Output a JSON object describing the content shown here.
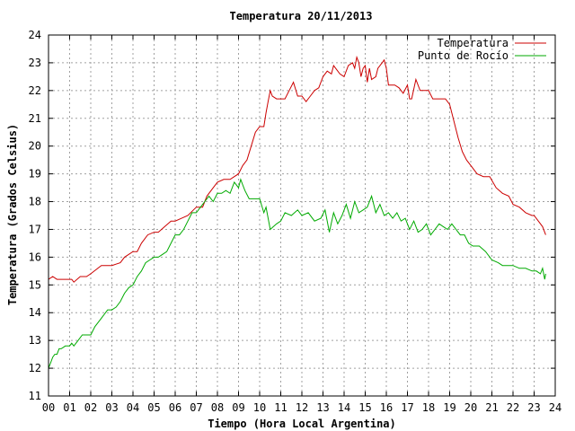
{
  "chart_data": {
    "type": "line",
    "title": "Temperatura 20/11/2013",
    "xlabel": "Tiempo (Hora Local Argentina)",
    "ylabel": "Temperatura (Grados Celsius)",
    "xlim": [
      0,
      24
    ],
    "ylim": [
      11,
      24
    ],
    "x_ticks": [
      "00",
      "01",
      "02",
      "03",
      "04",
      "05",
      "06",
      "07",
      "08",
      "09",
      "10",
      "11",
      "12",
      "13",
      "14",
      "15",
      "16",
      "17",
      "18",
      "19",
      "20",
      "21",
      "22",
      "23",
      "24"
    ],
    "y_ticks": [
      11,
      12,
      13,
      14,
      15,
      16,
      17,
      18,
      19,
      20,
      21,
      22,
      23,
      24
    ],
    "grid": true,
    "legend_position": "top-right",
    "series": [
      {
        "name": "Temperatura",
        "color": "#cc0000",
        "x": [
          0,
          0.2,
          0.4,
          0.8,
          1.1,
          1.2,
          1.5,
          1.8,
          2.0,
          2.5,
          3.0,
          3.4,
          3.6,
          4.0,
          4.2,
          4.4,
          4.7,
          5.0,
          5.2,
          5.5,
          5.8,
          6.0,
          6.3,
          6.6,
          7.0,
          7.3,
          7.5,
          7.8,
          8.0,
          8.3,
          8.6,
          9.0,
          9.2,
          9.4,
          9.6,
          9.8,
          10.0,
          10.2,
          10.3,
          10.4,
          10.5,
          10.6,
          10.8,
          11.0,
          11.2,
          11.4,
          11.6,
          11.8,
          12.0,
          12.2,
          12.4,
          12.6,
          12.8,
          13.0,
          13.2,
          13.4,
          13.5,
          13.6,
          13.8,
          14.0,
          14.2,
          14.4,
          14.5,
          14.6,
          14.7,
          14.8,
          14.9,
          15.0,
          15.1,
          15.2,
          15.3,
          15.5,
          15.6,
          15.8,
          15.9,
          16.0,
          16.1,
          16.2,
          16.4,
          16.6,
          16.8,
          17.0,
          17.1,
          17.2,
          17.4,
          17.6,
          17.8,
          18.0,
          18.2,
          18.4,
          18.6,
          18.8,
          19.0,
          19.2,
          19.4,
          19.6,
          19.8,
          20.0,
          20.3,
          20.6,
          20.9,
          21.2,
          21.5,
          21.8,
          22.0,
          22.3,
          22.6,
          22.9,
          23.0,
          23.2,
          23.4,
          23.55
        ],
        "y": [
          15.2,
          15.3,
          15.2,
          15.2,
          15.2,
          15.1,
          15.3,
          15.3,
          15.4,
          15.7,
          15.7,
          15.8,
          16.0,
          16.2,
          16.2,
          16.5,
          16.8,
          16.9,
          16.9,
          17.1,
          17.3,
          17.3,
          17.4,
          17.5,
          17.8,
          17.8,
          18.2,
          18.5,
          18.7,
          18.8,
          18.8,
          19.0,
          19.3,
          19.5,
          20.0,
          20.5,
          20.7,
          20.7,
          21.2,
          21.6,
          22.0,
          21.8,
          21.7,
          21.7,
          21.7,
          22.0,
          22.3,
          21.8,
          21.8,
          21.6,
          21.8,
          22.0,
          22.1,
          22.5,
          22.7,
          22.6,
          22.9,
          22.8,
          22.6,
          22.5,
          22.9,
          23.0,
          22.8,
          23.2,
          23.0,
          22.5,
          22.8,
          22.9,
          22.3,
          22.8,
          22.4,
          22.5,
          22.8,
          23.0,
          23.1,
          22.8,
          22.2,
          22.2,
          22.2,
          22.1,
          21.9,
          22.2,
          21.7,
          21.7,
          22.4,
          22.0,
          22.0,
          22.0,
          21.7,
          21.7,
          21.7,
          21.7,
          21.5,
          20.9,
          20.3,
          19.8,
          19.5,
          19.3,
          19.0,
          18.9,
          18.9,
          18.5,
          18.3,
          18.2,
          17.9,
          17.8,
          17.6,
          17.5,
          17.5,
          17.3,
          17.1,
          16.8
        ]
      },
      {
        "name": "Punto de Rocío",
        "color": "#00aa00",
        "x": [
          0,
          0.1,
          0.2,
          0.3,
          0.4,
          0.5,
          0.6,
          0.8,
          1.0,
          1.1,
          1.2,
          1.4,
          1.6,
          1.8,
          2.0,
          2.2,
          2.5,
          2.8,
          3.0,
          3.2,
          3.4,
          3.6,
          3.8,
          4.0,
          4.2,
          4.4,
          4.6,
          4.8,
          5.0,
          5.2,
          5.4,
          5.6,
          5.8,
          6.0,
          6.2,
          6.4,
          6.6,
          6.8,
          7.0,
          7.2,
          7.4,
          7.6,
          7.8,
          8.0,
          8.2,
          8.4,
          8.6,
          8.8,
          9.0,
          9.1,
          9.2,
          9.3,
          9.5,
          9.8,
          10.0,
          10.2,
          10.3,
          10.5,
          10.8,
          11.0,
          11.2,
          11.5,
          11.8,
          12.0,
          12.3,
          12.6,
          12.9,
          13.1,
          13.3,
          13.5,
          13.7,
          13.9,
          14.1,
          14.3,
          14.5,
          14.7,
          14.9,
          15.1,
          15.3,
          15.5,
          15.7,
          15.9,
          16.1,
          16.3,
          16.5,
          16.7,
          16.9,
          17.1,
          17.3,
          17.5,
          17.7,
          17.9,
          18.1,
          18.3,
          18.5,
          18.7,
          18.9,
          19.1,
          19.3,
          19.5,
          19.7,
          19.9,
          20.1,
          20.4,
          20.7,
          21.0,
          21.3,
          21.5,
          21.8,
          22.0,
          22.3,
          22.6,
          22.9,
          23.1,
          23.3,
          23.4,
          23.5,
          23.55
        ],
        "y": [
          12.0,
          12.2,
          12.4,
          12.5,
          12.5,
          12.7,
          12.7,
          12.8,
          12.8,
          12.9,
          12.8,
          13.0,
          13.2,
          13.2,
          13.2,
          13.5,
          13.8,
          14.1,
          14.1,
          14.2,
          14.4,
          14.7,
          14.9,
          15.0,
          15.3,
          15.5,
          15.8,
          15.9,
          16.0,
          16.0,
          16.1,
          16.2,
          16.5,
          16.8,
          16.8,
          17.0,
          17.3,
          17.6,
          17.6,
          17.8,
          18.0,
          18.2,
          18.0,
          18.3,
          18.3,
          18.4,
          18.3,
          18.7,
          18.5,
          18.8,
          18.6,
          18.4,
          18.1,
          18.1,
          18.1,
          17.6,
          17.8,
          17.0,
          17.2,
          17.3,
          17.6,
          17.5,
          17.7,
          17.5,
          17.6,
          17.3,
          17.4,
          17.7,
          16.9,
          17.6,
          17.2,
          17.5,
          17.9,
          17.4,
          18.0,
          17.6,
          17.7,
          17.8,
          18.2,
          17.6,
          17.9,
          17.5,
          17.6,
          17.4,
          17.6,
          17.3,
          17.4,
          17.0,
          17.3,
          16.9,
          17.0,
          17.2,
          16.8,
          17.0,
          17.2,
          17.1,
          17.0,
          17.2,
          17.0,
          16.8,
          16.8,
          16.5,
          16.4,
          16.4,
          16.2,
          15.9,
          15.8,
          15.7,
          15.7,
          15.7,
          15.6,
          15.6,
          15.5,
          15.5,
          15.4,
          15.6,
          15.2,
          15.4
        ]
      }
    ]
  }
}
